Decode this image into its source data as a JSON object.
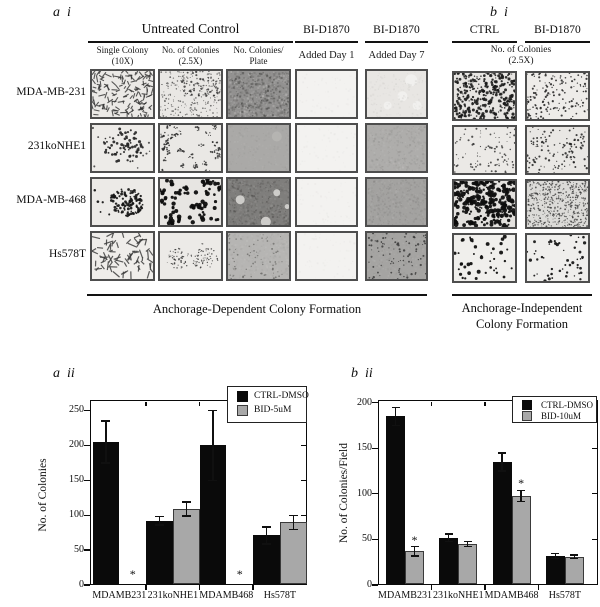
{
  "panel_a_i": {
    "label": "a  i",
    "untreated_header": "Untreated Control",
    "bid_header_day1": "BI-D1870",
    "bid_header_day7": "BI-D1870",
    "sub_headers": [
      {
        "lines": [
          "Single Colony",
          "(10X)"
        ]
      },
      {
        "lines": [
          "No. of Colonies",
          "(2.5X)"
        ]
      },
      {
        "lines": [
          "No. Colonies/",
          "Plate"
        ]
      },
      {
        "lines": [
          "Added Day 1"
        ]
      },
      {
        "lines": [
          "Added Day 7"
        ]
      }
    ],
    "row_labels": [
      "MDA-MB-231",
      "231koNHE1",
      "MDA-MB-468",
      "Hs578T"
    ],
    "caption": "Anchorage-Dependent Colony Formation",
    "cells": [
      [
        "spindle-dense",
        "fine-speckle",
        "dense-mottle-dark",
        "blank",
        "faint-blobs"
      ],
      [
        "cluster-marks",
        "clump-speckle",
        "smooth-gray",
        "blank",
        "mottle-gray"
      ],
      [
        "round-colony",
        "bold-blobs",
        "dark-lightspots",
        "blank",
        "mottle-gray2"
      ],
      [
        "spindle-sparse",
        "dot-patches",
        "speckle-gray-light",
        "blank",
        "speckled-gray-dark"
      ]
    ]
  },
  "panel_b_i": {
    "label": "b  i",
    "col_headers": [
      "CTRL",
      "BI-D1870"
    ],
    "sub_header_lines": [
      "No. of Colonies",
      "(2.5X)"
    ],
    "caption_lines": [
      "Anchorage-Independent",
      "Colony Formation"
    ],
    "cells": [
      [
        "b-dense",
        "b-medium"
      ],
      [
        "b-sparse-fine",
        "b-medium2"
      ],
      [
        "b-bold-dense",
        "b-grainy-dense"
      ],
      [
        "b-sparse-bold",
        "b-sparse-bold2"
      ]
    ]
  },
  "chart_data": [
    {
      "id": "a_ii",
      "panel_label": "a  ii",
      "type": "bar",
      "title": "",
      "xlabel": "",
      "ylabel": "No. of Colonies",
      "ylim": [
        0,
        265
      ],
      "yticks": [
        0,
        50,
        100,
        150,
        200,
        250
      ],
      "categories": [
        "MDAMB231",
        "231koNHE1",
        "MDAMB468",
        "Hs578T"
      ],
      "legend_position": "top-right",
      "grid": false,
      "series": [
        {
          "name": "CTRL-DMSO",
          "color": "#0a0a0a",
          "values": [
            205,
            92,
            200,
            71
          ],
          "errors": [
            30,
            6,
            50,
            12
          ]
        },
        {
          "name": "BID-5uM",
          "color": "#a8a8a8",
          "values": [
            0,
            109,
            0,
            90
          ],
          "errors": [
            0,
            10,
            0,
            10
          ]
        }
      ],
      "asterisks": [
        {
          "series": 1,
          "category": "MDAMB231"
        },
        {
          "series": 1,
          "category": "MDAMB468"
        }
      ]
    },
    {
      "id": "b_ii",
      "panel_label": "b  ii",
      "type": "bar",
      "title": "",
      "xlabel": "",
      "ylabel": "No. of Colonies/Field",
      "ylim": [
        0,
        203
      ],
      "yticks": [
        0,
        50,
        100,
        150,
        200
      ],
      "categories": [
        "MDAMB231",
        "231koNHE1",
        "MDAMB468",
        "Hs578T"
      ],
      "legend_position": "top-right",
      "grid": false,
      "series": [
        {
          "name": "CTRL-DMSO",
          "color": "#0a0a0a",
          "values": [
            185,
            52,
            135,
            32
          ],
          "errors": [
            10,
            4,
            10,
            3
          ]
        },
        {
          "name": "BID-10uM",
          "color": "#a8a8a8",
          "values": [
            37,
            45,
            98,
            31
          ],
          "errors": [
            5,
            3,
            6,
            2
          ]
        }
      ],
      "asterisks": [
        {
          "series": 1,
          "category": "MDAMB231"
        },
        {
          "series": 1,
          "category": "MDAMB468"
        }
      ]
    }
  ]
}
